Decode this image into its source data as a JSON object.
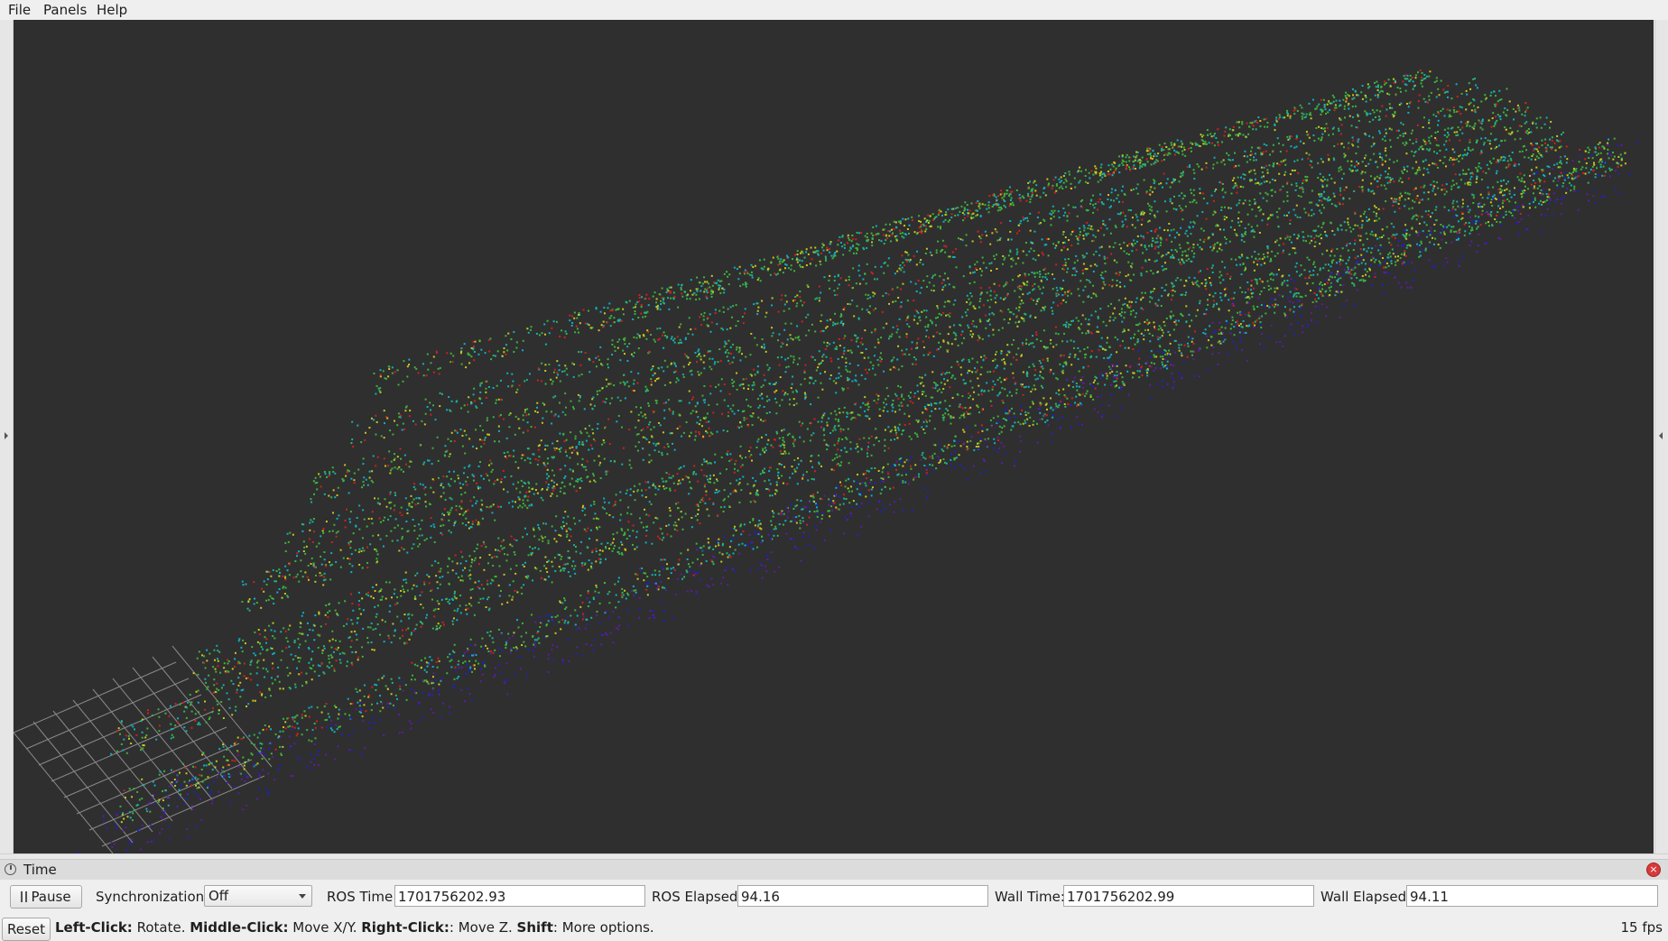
{
  "menu": {
    "file": "File",
    "panels": "Panels",
    "help": "Help"
  },
  "viewport": {
    "description_colors": [
      "#5a1ea0",
      "#2020c8",
      "#10b0c0",
      "#3cb43c",
      "#c8c81e",
      "#d02020"
    ],
    "background": "#2f2f2f"
  },
  "time_panel": {
    "title": "Time",
    "pause_label": "Pause",
    "sync_label": "Synchronization:",
    "sync_value": "Off",
    "ros_time_label": "ROS Time:",
    "ros_time_value": "1701756202.93",
    "ros_elapsed_label": "ROS Elapsed:",
    "ros_elapsed_value": "94.16",
    "wall_time_label": "Wall Time:",
    "wall_time_value": "1701756202.99",
    "wall_elapsed_label": "Wall Elapsed:",
    "wall_elapsed_value": "94.11"
  },
  "status": {
    "reset_label": "Reset",
    "hint_left_key": "Left-Click:",
    "hint_left_action": " Rotate. ",
    "hint_middle_key": "Middle-Click:",
    "hint_middle_action": " Move X/Y. ",
    "hint_right_key": "Right-Click:",
    "hint_right_action": ": Move Z. ",
    "hint_shift_key": "Shift",
    "hint_shift_action": ": More options.",
    "fps": "15 fps"
  }
}
